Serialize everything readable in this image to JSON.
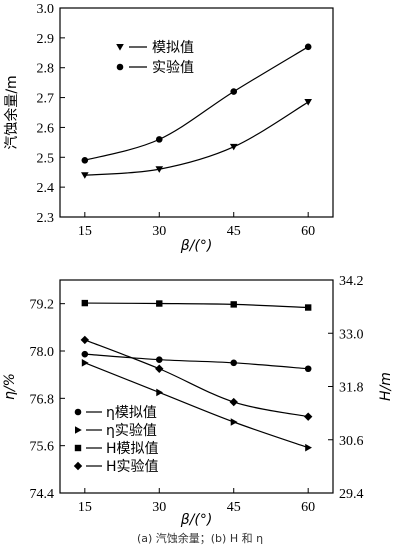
{
  "chart_data": [
    {
      "type": "line",
      "title": "",
      "xlabel": "β/(°)",
      "ylabel": "汽蚀余量/m",
      "x": [
        15,
        30,
        45,
        60
      ],
      "xticks": [
        "15",
        "30",
        "45",
        "60"
      ],
      "xlim": [
        10,
        65
      ],
      "ylim": [
        2.3,
        3.0
      ],
      "yticks": [
        "2.3",
        "2.4",
        "2.5",
        "2.6",
        "2.7",
        "2.8",
        "2.9",
        "3.0"
      ],
      "legend_position": "top-left",
      "series": [
        {
          "name": "模拟值",
          "marker": "triangle-down",
          "values": [
            2.44,
            2.46,
            2.535,
            2.685
          ]
        },
        {
          "name": "实验值",
          "marker": "circle",
          "values": [
            2.49,
            2.56,
            2.72,
            2.87
          ]
        }
      ]
    },
    {
      "type": "line",
      "title": "",
      "xlabel": "β/(°)",
      "ylabel": "η/%",
      "ylabel_right": "H/m",
      "x": [
        15,
        30,
        45,
        60
      ],
      "xticks": [
        "15",
        "30",
        "45",
        "60"
      ],
      "xlim": [
        10,
        65
      ],
      "ylim": [
        74.4,
        79.8
      ],
      "yticks": [
        "74.4",
        "75.6",
        "76.8",
        "78.0",
        "79.2"
      ],
      "ylim_right": [
        29.4,
        34.2
      ],
      "yticks_right": [
        "29.4",
        "30.6",
        "31.8",
        "33.0",
        "34.2"
      ],
      "legend_position": "bottom-left",
      "series": [
        {
          "name": "η模拟值",
          "axis": "left",
          "marker": "circle",
          "values": [
            77.92,
            77.78,
            77.7,
            77.55
          ]
        },
        {
          "name": "η实验值",
          "axis": "left",
          "marker": "triangle-right",
          "values": [
            77.7,
            76.95,
            76.2,
            75.55
          ]
        },
        {
          "name": "H模拟值",
          "axis": "right",
          "marker": "square",
          "values": [
            33.68,
            33.67,
            33.65,
            33.58
          ]
        },
        {
          "name": "H实验值",
          "axis": "right",
          "marker": "diamond",
          "values": [
            32.85,
            32.2,
            31.45,
            31.12
          ]
        }
      ]
    }
  ],
  "caption": "(a) 汽蚀余量；(b) H 和 η"
}
